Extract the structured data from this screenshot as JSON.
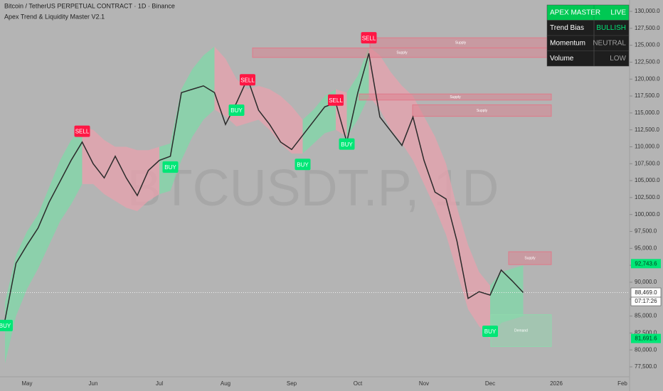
{
  "chart_data": {
    "type": "line",
    "title": "Bitcoin / TetherUS PERPETUAL CONTRACT · 1D · Binance",
    "subtitle": "Apex Trend & Liquidity Master V2.1",
    "watermark": "BTCUSDT.P, 1D",
    "categories": [
      null,
      null,
      "May",
      null,
      null,
      null,
      null,
      null,
      "Jun",
      null,
      null,
      null,
      null,
      null,
      "Jul",
      null,
      null,
      null,
      null,
      null,
      "Aug",
      null,
      null,
      null,
      null,
      null,
      "Sep",
      null,
      null,
      null,
      null,
      null,
      "Oct",
      null,
      null,
      null,
      null,
      null,
      "Nov",
      null,
      null,
      null,
      null,
      null,
      "Dec",
      null,
      null,
      null,
      null,
      null,
      "2026",
      null,
      null,
      null,
      null,
      null,
      "Feb"
    ],
    "series": [
      {
        "name": "BTCUSDT.P",
        "color": "#2a2a2a",
        "values": [
          84400,
          92800,
          95500,
          98000,
          101800,
          104900,
          108000,
          110700,
          107500,
          105400,
          108600,
          105400,
          102800,
          106500,
          108000,
          108600,
          118000,
          118500,
          119000,
          118000,
          113300,
          116500,
          120100,
          115400,
          113300,
          110700,
          109600,
          111700,
          113800,
          115900,
          116500,
          110700,
          118000,
          123800,
          114400,
          112300,
          110200,
          114400,
          108000,
          103300,
          102300,
          96000,
          87600,
          88600,
          88100,
          91800,
          90200,
          88469,
          null,
          null,
          null,
          null,
          null,
          null,
          null,
          null,
          null
        ]
      },
      {
        "name": "BUY",
        "color": "#00e676",
        "values": [
          83600,
          null,
          null,
          null,
          null,
          null,
          null,
          null,
          null,
          null,
          null,
          null,
          null,
          null,
          null,
          107000,
          null,
          null,
          null,
          null,
          null,
          115400,
          null,
          null,
          null,
          null,
          null,
          107400,
          null,
          null,
          null,
          110400,
          null,
          null,
          null,
          null,
          null,
          null,
          null,
          null,
          null,
          null,
          null,
          null,
          82750,
          null,
          null,
          null,
          null,
          null,
          null,
          null,
          null,
          null,
          null,
          null,
          null
        ]
      },
      {
        "name": "SELL",
        "color": "#ff1744",
        "values": [
          null,
          null,
          null,
          null,
          null,
          null,
          null,
          112300,
          null,
          null,
          null,
          null,
          null,
          null,
          null,
          null,
          null,
          null,
          null,
          null,
          null,
          null,
          119900,
          null,
          null,
          null,
          null,
          null,
          null,
          null,
          116900,
          null,
          null,
          126100,
          null,
          null,
          null,
          null,
          null,
          null,
          null,
          null,
          null,
          null,
          null,
          null,
          null,
          null,
          null,
          null,
          null,
          null,
          null,
          null,
          null,
          null,
          null
        ]
      }
    ],
    "band": {
      "upper": [
        87000,
        94000,
        97500,
        100000,
        104000,
        108000,
        111000,
        113000,
        112500,
        111000,
        110000,
        110000,
        109500,
        109500,
        110000,
        110500,
        118500,
        121500,
        123500,
        124800,
        123000,
        120000,
        118500,
        119000,
        118500,
        117500,
        116000,
        114000,
        115500,
        117500,
        118500,
        118000,
        120500,
        124800,
        123500,
        121000,
        119000,
        117500,
        114500,
        111500,
        107500,
        101000,
        95500,
        91500,
        89500,
        91500,
        92000,
        92500
      ],
      "lower": [
        78000,
        85000,
        89000,
        92000,
        95500,
        99000,
        101500,
        104500,
        104500,
        103000,
        102000,
        101000,
        100500,
        102000,
        103000,
        103500,
        108000,
        111500,
        114000,
        115500,
        114500,
        113000,
        113500,
        114000,
        112500,
        110500,
        109000,
        109000,
        110500,
        112000,
        112500,
        111500,
        114000,
        117500,
        115500,
        112500,
        110500,
        108000,
        104500,
        101000,
        97000,
        91500,
        86000,
        83500,
        81500,
        84000,
        84500,
        85000
      ],
      "colors": [
        "#7fd9a8",
        "#7fd9a8",
        "#7fd9a8",
        "#7fd9a8",
        "#7fd9a8",
        "#7fd9a8",
        "#7fd9a8",
        "#e8a1ad",
        "#e8a1ad",
        "#e8a1ad",
        "#e8a1ad",
        "#e8a1ad",
        "#e8a1ad",
        "#e8a1ad",
        "#7fd9a8",
        "#7fd9a8",
        "#7fd9a8",
        "#7fd9a8",
        "#7fd9a8",
        "#e8a1ad",
        "#e8a1ad",
        "#e8a1ad",
        "#e8a1ad",
        "#e8a1ad",
        "#e8a1ad",
        "#e8a1ad",
        "#e8a1ad",
        "#7fd9a8",
        "#7fd9a8",
        "#7fd9a8",
        "#e8a1ad",
        "#7fd9a8",
        "#7fd9a8",
        "#e8a1ad",
        "#e8a1ad",
        "#e8a1ad",
        "#e8a1ad",
        "#e8a1ad",
        "#e8a1ad",
        "#e8a1ad",
        "#e8a1ad",
        "#e8a1ad",
        "#e8a1ad",
        "#e8a1ad",
        "#7fd9a8",
        "#7fd9a8",
        "#7fd9a8",
        "#7fd9a8"
      ]
    },
    "zones": [
      {
        "label": "Supply",
        "low": 123200,
        "high": 124600,
        "color": "#e07a8a"
      },
      {
        "label": "Supply",
        "low": 124600,
        "high": 126100,
        "color": "#e07a8a"
      },
      {
        "label": "Supply",
        "low": 116900,
        "high": 117800,
        "color": "#e07a8a"
      },
      {
        "label": "Supply",
        "low": 114500,
        "high": 116200,
        "color": "#e07a8a"
      },
      {
        "label": "Supply",
        "low": 92600,
        "high": 94500,
        "color": "#e07a8a"
      },
      {
        "label": "Demand",
        "low": 80500,
        "high": 85200,
        "color": "#8fd9ae"
      }
    ],
    "ylim": [
      77500,
      130000
    ],
    "yticks": [
      {
        "value": 77500,
        "label": "77,500.0"
      },
      {
        "value": 80000,
        "label": "80,000.0"
      },
      {
        "value": 82500,
        "label": "82,500.0"
      },
      {
        "value": 85000,
        "label": "85,000.0"
      },
      {
        "value": 87500,
        "label": "87,500.0"
      },
      {
        "value": 90000,
        "label": "90,000.0"
      },
      {
        "value": 92500,
        "label": "92,500.0"
      },
      {
        "value": 95000,
        "label": "95,000.0"
      },
      {
        "value": 97500,
        "label": "97,500.0"
      },
      {
        "value": 100000,
        "label": "100,000.0"
      },
      {
        "value": 102500,
        "label": "102,500.0"
      },
      {
        "value": 105000,
        "label": "105,000.0"
      },
      {
        "value": 107500,
        "label": "107,500.0"
      },
      {
        "value": 110000,
        "label": "110,000.0"
      },
      {
        "value": 112500,
        "label": "112,500.0"
      },
      {
        "value": 115000,
        "label": "115,000.0"
      },
      {
        "value": 117500,
        "label": "117,500.0"
      },
      {
        "value": 120000,
        "label": "120,000.0"
      },
      {
        "value": 122500,
        "label": "122,500.0"
      },
      {
        "value": 125000,
        "label": "125,000.0"
      },
      {
        "value": 127500,
        "label": "127,500.0"
      },
      {
        "value": 130000,
        "label": "130,000.0"
      }
    ],
    "price_tags": [
      {
        "value": 92743.6,
        "label": "92,743.6",
        "color": "#00e676"
      },
      {
        "value": 88469.0,
        "label": "88,469.0",
        "color": "#ffffff"
      },
      {
        "value": 81691.6,
        "label": "81,691.6",
        "color": "#00e676"
      }
    ],
    "countdown": "07:17:26",
    "panel": [
      [
        "APEX MASTER",
        "LIVE"
      ],
      [
        "Trend Bias",
        "BULLISH"
      ],
      [
        "Momentum",
        "NEUTRAL"
      ],
      [
        "Volume",
        "LOW"
      ]
    ],
    "panel_colors": [
      "#ffffff",
      "#00e676",
      "#9e9e9e",
      "#9e9e9e"
    ]
  }
}
